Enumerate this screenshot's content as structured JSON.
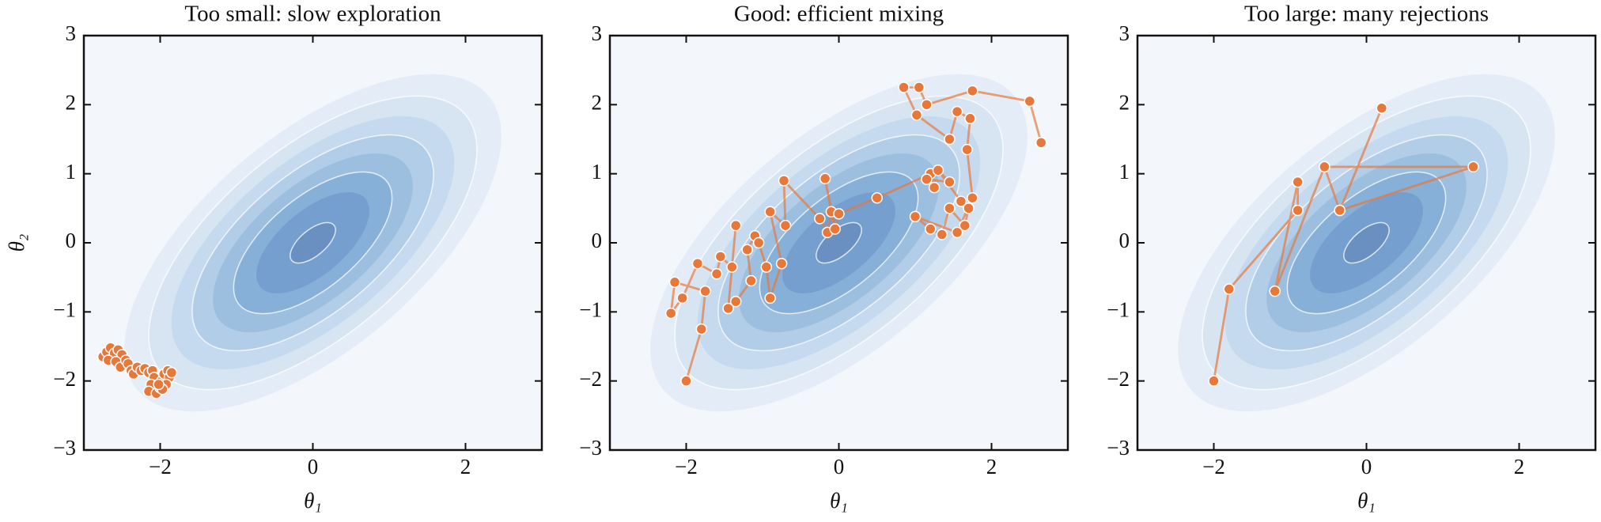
{
  "chart_data": [
    {
      "type": "line",
      "title": "Too small: slow exploration",
      "xlabel": "θ₁",
      "ylabel": "θ₂",
      "color": "#e8773a",
      "xlim": [
        -3,
        3
      ],
      "ylim": [
        -3,
        3
      ],
      "xticks": [
        {
          "value": -2,
          "label": "−2"
        },
        0,
        2
      ],
      "yticks": [
        {
          "value": -3,
          "label": "−3"
        },
        {
          "value": -2,
          "label": "−2"
        },
        {
          "value": -1,
          "label": "−1"
        },
        0,
        1,
        2,
        3
      ],
      "x": [
        -2.75,
        -2.7,
        -2.65,
        -2.6,
        -2.68,
        -2.55,
        -2.5,
        -2.58,
        -2.52,
        -2.45,
        -2.42,
        -2.38,
        -2.35,
        -2.3,
        -2.25,
        -2.2,
        -2.15,
        -2.1,
        -2.08,
        -2.12,
        -2.15,
        -2.05,
        -2.0,
        -1.98,
        -1.95,
        -1.9,
        -1.88,
        -1.92,
        -1.97,
        -2.02,
        -1.85
      ],
      "values": [
        -1.65,
        -1.58,
        -1.52,
        -1.6,
        -1.7,
        -1.55,
        -1.62,
        -1.72,
        -1.8,
        -1.7,
        -1.75,
        -1.85,
        -1.9,
        -1.8,
        -1.85,
        -1.82,
        -1.88,
        -1.85,
        -1.95,
        -2.05,
        -2.15,
        -2.18,
        -2.1,
        -2.0,
        -1.9,
        -1.85,
        -1.95,
        -2.05,
        -2.12,
        -2.05,
        -1.88
      ]
    },
    {
      "type": "line",
      "title": "Good: efficient mixing",
      "xlabel": "θ₁",
      "color": "#e8773a",
      "xlim": [
        -3,
        3
      ],
      "ylim": [
        -3,
        3
      ],
      "xticks": [
        {
          "value": -2,
          "label": "−2"
        },
        0,
        2
      ],
      "yticks": [
        {
          "value": -3,
          "label": "−3"
        },
        {
          "value": -2,
          "label": "−2"
        },
        {
          "value": -1,
          "label": "−1"
        },
        0,
        1,
        2,
        3
      ],
      "x": [
        -2.0,
        -1.8,
        -1.75,
        -2.15,
        -2.2,
        -2.05,
        -1.85,
        -1.6,
        -1.55,
        -1.4,
        -1.35,
        -1.45,
        -1.35,
        -1.15,
        -1.2,
        -1.1,
        -1.05,
        -0.95,
        -0.9,
        -0.75,
        -0.9,
        -0.7,
        -0.72,
        -0.25,
        -0.15,
        -0.1,
        -0.18,
        -0.05,
        0.0,
        0.5,
        1.2,
        1.25,
        1.15,
        1.45,
        1.3,
        1.6,
        1.7,
        1.65,
        1.45,
        1.35,
        1.2,
        1.0,
        1.55,
        1.75,
        1.68,
        1.72,
        1.55,
        1.45,
        1.02,
        0.85,
        1.05,
        1.15,
        1.75,
        2.5,
        2.65
      ],
      "values": [
        -2.0,
        -1.25,
        -0.7,
        -0.57,
        -1.02,
        -0.8,
        -0.3,
        -0.45,
        -0.2,
        -0.35,
        0.25,
        -0.95,
        -0.85,
        -0.55,
        -0.1,
        0.1,
        0.0,
        -0.35,
        -0.8,
        -0.3,
        0.45,
        0.25,
        0.9,
        0.35,
        0.15,
        0.45,
        0.93,
        0.2,
        0.42,
        0.65,
        1.0,
        0.8,
        0.92,
        0.88,
        1.05,
        0.6,
        0.5,
        0.25,
        0.5,
        0.12,
        0.2,
        0.38,
        0.15,
        0.65,
        1.35,
        1.8,
        1.9,
        1.5,
        1.85,
        2.25,
        2.25,
        2.0,
        2.2,
        2.05,
        1.45
      ]
    },
    {
      "type": "line",
      "title": "Too large: many rejections",
      "xlabel": "θ₁",
      "color": "#e8773a",
      "xlim": [
        -3,
        3
      ],
      "ylim": [
        -3,
        3
      ],
      "xticks": [
        {
          "value": -2,
          "label": "−2"
        },
        0,
        2
      ],
      "yticks": [
        {
          "value": -3,
          "label": "−3"
        },
        {
          "value": -2,
          "label": "−2"
        },
        {
          "value": -1,
          "label": "−1"
        },
        0,
        1,
        2,
        3
      ],
      "x": [
        -2.0,
        -1.8,
        -0.9,
        -0.9,
        -1.2,
        -0.55,
        -0.35,
        0.2,
        -0.35,
        1.4,
        -0.55
      ],
      "values": [
        -2.0,
        -0.67,
        0.47,
        0.88,
        -0.7,
        1.1,
        0.47,
        1.95,
        0.47,
        1.1,
        1.1
      ]
    }
  ]
}
